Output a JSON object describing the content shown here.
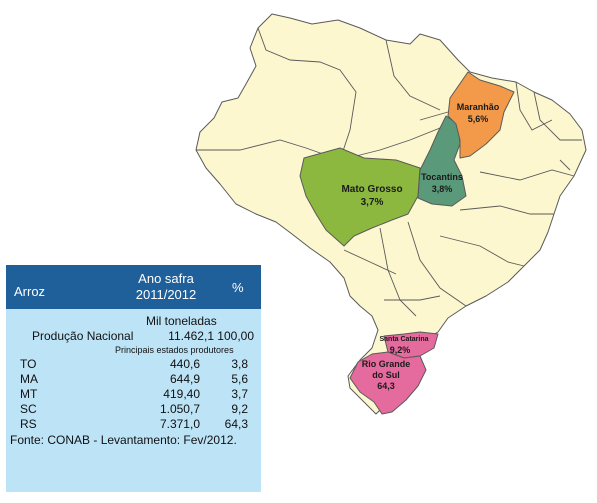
{
  "map": {
    "states": [
      {
        "key": "mt",
        "name": "Mato Grosso",
        "value": "3,7%",
        "color": "#8db83f"
      },
      {
        "key": "to",
        "name": "Tocantins",
        "value": "3,8%",
        "color": "#5a9a7a"
      },
      {
        "key": "ma",
        "name": "Maranhão",
        "value": "5,6%",
        "color": "#f29a4a"
      },
      {
        "key": "rs",
        "name_lines": [
          "Rio Grande",
          "do Sul"
        ],
        "value": "64,3",
        "color": "#e56a9e"
      },
      {
        "key": "sc",
        "name": "Santa Catarina",
        "value": "9,2%",
        "color": "#e56a9e"
      }
    ],
    "base_color": "#fcf7cf"
  },
  "panel": {
    "header": {
      "product": "Arroz",
      "year_line1": "Ano safra",
      "year_line2": "2011/2012",
      "pct": "%"
    },
    "unit": "Mil toneladas",
    "national": {
      "label": "Produção Nacional",
      "value": "11.462,1",
      "pct": "100,00"
    },
    "subtitle": "Principais estados produtores",
    "rows": [
      {
        "uf": "TO",
        "value": "440,6",
        "pct": "3,8"
      },
      {
        "uf": "MA",
        "value": "644,9",
        "pct": "5,6"
      },
      {
        "uf": "MT",
        "value": "419,40",
        "pct": "3,7"
      },
      {
        "uf": "SC",
        "value": "1.050,7",
        "pct": "9,2"
      },
      {
        "uf": "RS",
        "value": "7.371,0",
        "pct": "64,3"
      }
    ],
    "source": "Fonte: CONAB   - Levantamento: Fev/2012."
  }
}
